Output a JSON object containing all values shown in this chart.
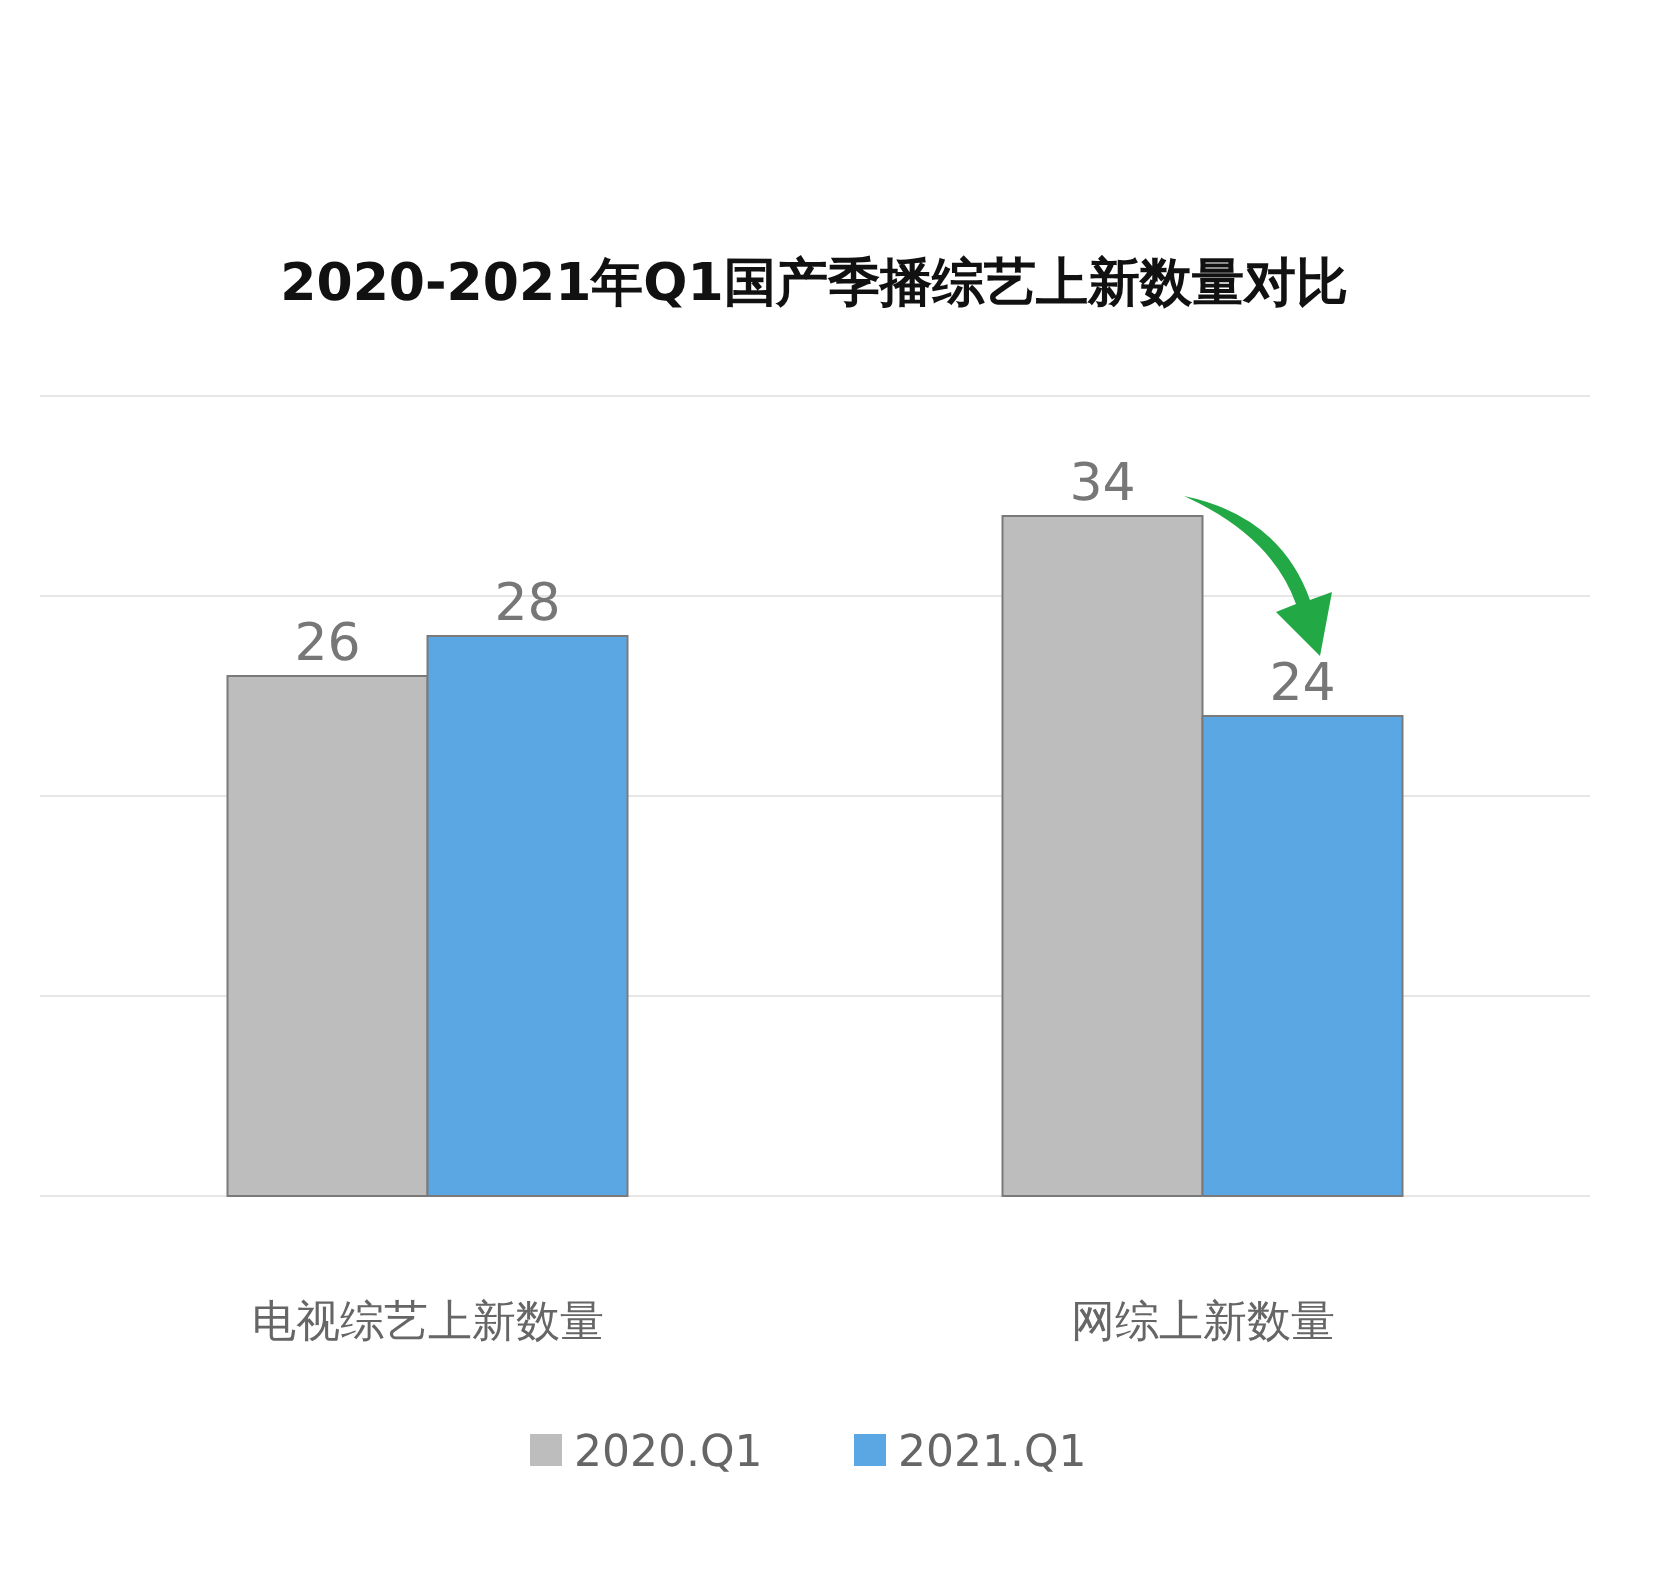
{
  "chart_data": {
    "type": "bar",
    "title": "2020-2021年Q1国产季播综艺上新数量对比",
    "categories": [
      "电视综艺上新数量",
      "网综上新数量"
    ],
    "series": [
      {
        "name": "2020.Q1",
        "color": "#bdbdbd",
        "values": [
          26,
          34
        ]
      },
      {
        "name": "2021.Q1",
        "color": "#5aa7e3",
        "values": [
          28,
          24
        ]
      }
    ],
    "ylim": [
      0,
      40
    ],
    "yticks": [
      {
        "value": 0,
        "label": null
      },
      {
        "value": 10,
        "label": null
      },
      {
        "value": 20,
        "label": null
      },
      {
        "value": 30,
        "label": null
      },
      {
        "value": 40,
        "label": null
      }
    ],
    "tick_labels": "x",
    "grid": "y",
    "data_labels": true,
    "legend": "bottom"
  }
}
